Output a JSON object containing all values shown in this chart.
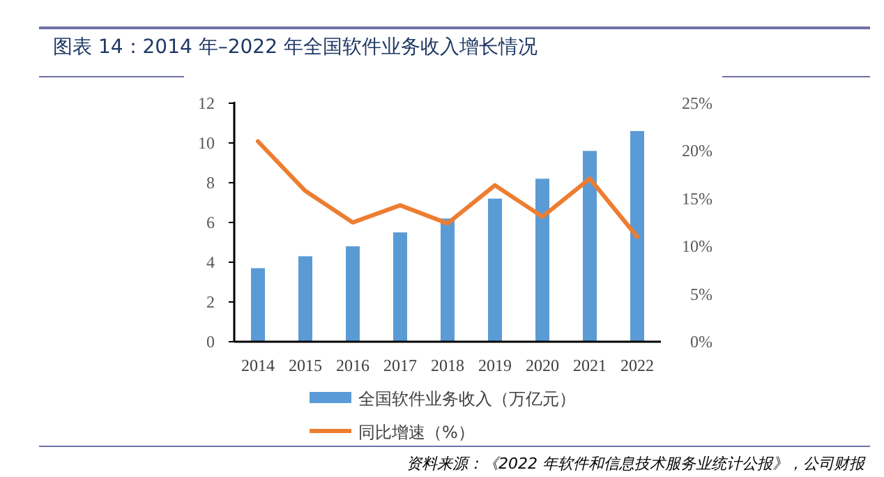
{
  "chart_data": {
    "type": "bar",
    "title": "图表 14：2014 年–2022 年全国软件业务收入增长情况",
    "categories": [
      "2014",
      "2015",
      "2016",
      "2017",
      "2018",
      "2019",
      "2020",
      "2021",
      "2022"
    ],
    "series": [
      {
        "name": "全国软件业务收入（万亿元）",
        "color": "#5b9bd5",
        "values": [
          3.7,
          4.3,
          4.8,
          5.5,
          6.2,
          7.2,
          8.2,
          9.6,
          10.6
        ]
      },
      {
        "name": "同比增速（%）",
        "type": "line",
        "axis": "y2",
        "color": "#ed7d31",
        "values": [
          21.0,
          15.8,
          12.5,
          14.3,
          12.4,
          16.4,
          13.1,
          17.1,
          11.0
        ]
      }
    ],
    "ylim": [
      0,
      12
    ],
    "yticks": [
      0,
      2,
      4,
      6,
      8,
      10,
      12
    ],
    "y2lim": [
      0,
      25
    ],
    "y2ticks": [
      {
        "value": 0,
        "label": "0%"
      },
      {
        "value": 5,
        "label": "5%"
      },
      {
        "value": 10,
        "label": "10%"
      },
      {
        "value": 15,
        "label": "15%"
      },
      {
        "value": 20,
        "label": "20%"
      },
      {
        "value": 25,
        "label": "25%"
      }
    ],
    "legend": "bottom",
    "grid": false,
    "marker": "none",
    "annotations": [
      "资料来源：《2022 年软件和信息技术服务业统计公报》，公司财报"
    ]
  }
}
